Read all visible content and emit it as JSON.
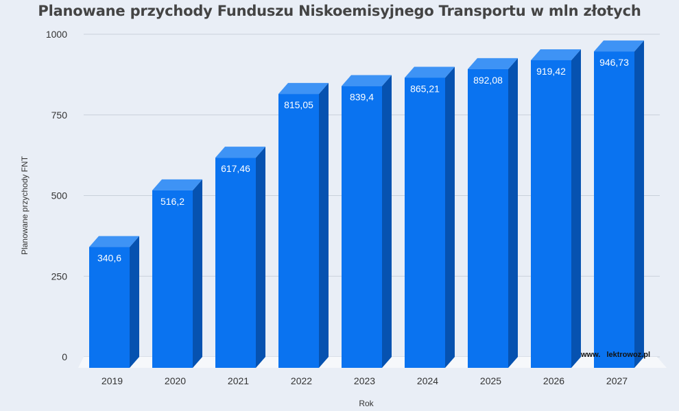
{
  "chart_data": {
    "type": "bar",
    "title": "Planowane przychody Funduszu Niskoemisyjnego Transportu w mln złotych",
    "xlabel": "Rok",
    "ylabel": "Planowane przychody FNT",
    "categories": [
      "2019",
      "2020",
      "2021",
      "2022",
      "2023",
      "2024",
      "2025",
      "2026",
      "2027"
    ],
    "values": [
      340.6,
      516.2,
      617.46,
      815.05,
      839.4,
      865.21,
      892.08,
      919.42,
      946.73
    ],
    "value_labels": [
      "340,6",
      "516,2",
      "617,46",
      "815,05",
      "839,4",
      "865,21",
      "892,08",
      "919,42",
      "946,73"
    ],
    "ylim": [
      0,
      1000
    ],
    "yticks": [
      0,
      250,
      500,
      750,
      1000
    ],
    "grid": true,
    "legend": "none",
    "style": "3d",
    "colors": {
      "bar_front": "#0a73f0",
      "bar_top": "#3e93f5",
      "bar_side": "#0652b0",
      "grid": "#c9d0da",
      "floor": "#f6f8fb",
      "background": "#e9eef6"
    }
  },
  "watermark": {
    "text": "www.   lektrowoz.pl"
  }
}
